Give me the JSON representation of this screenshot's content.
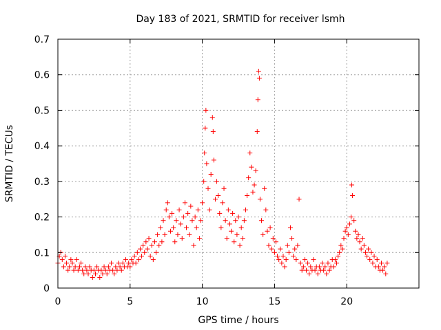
{
  "chart_data": {
    "type": "scatter",
    "title": "Day 183 of 2021, SRMTID for receiver lsmh",
    "xlabel": "GPS time / hours",
    "ylabel": "SRMTID / TECUs",
    "xlim": [
      0,
      25
    ],
    "ylim": [
      0,
      0.7
    ],
    "xticks": [
      0,
      5,
      10,
      15,
      20
    ],
    "yticks": [
      0,
      0.1,
      0.2,
      0.3,
      0.4,
      0.5,
      0.6,
      0.7
    ],
    "xtick_labels": [
      "0",
      "5",
      "10",
      "15",
      "20"
    ],
    "ytick_labels": [
      "0",
      "0.1",
      "0.2",
      "0.3",
      "0.4",
      "0.5",
      "0.6",
      "0.7"
    ],
    "grid": true,
    "marker": "+",
    "color": "#ff0000",
    "series": [
      {
        "name": "lsmh",
        "points": [
          [
            0.0,
            0.07
          ],
          [
            0.1,
            0.09
          ],
          [
            0.2,
            0.1
          ],
          [
            0.3,
            0.08
          ],
          [
            0.4,
            0.06
          ],
          [
            0.5,
            0.09
          ],
          [
            0.6,
            0.07
          ],
          [
            0.7,
            0.05
          ],
          [
            0.8,
            0.06
          ],
          [
            0.9,
            0.08
          ],
          [
            1.0,
            0.07
          ],
          [
            1.1,
            0.05
          ],
          [
            1.2,
            0.06
          ],
          [
            1.3,
            0.08
          ],
          [
            1.4,
            0.05
          ],
          [
            1.5,
            0.06
          ],
          [
            1.6,
            0.07
          ],
          [
            1.7,
            0.05
          ],
          [
            1.8,
            0.04
          ],
          [
            1.9,
            0.06
          ],
          [
            2.0,
            0.05
          ],
          [
            2.1,
            0.04
          ],
          [
            2.2,
            0.06
          ],
          [
            2.3,
            0.05
          ],
          [
            2.4,
            0.03
          ],
          [
            2.5,
            0.05
          ],
          [
            2.6,
            0.04
          ],
          [
            2.7,
            0.06
          ],
          [
            2.8,
            0.05
          ],
          [
            2.9,
            0.03
          ],
          [
            3.0,
            0.05
          ],
          [
            3.1,
            0.04
          ],
          [
            3.2,
            0.06
          ],
          [
            3.3,
            0.05
          ],
          [
            3.4,
            0.04
          ],
          [
            3.5,
            0.06
          ],
          [
            3.6,
            0.05
          ],
          [
            3.7,
            0.07
          ],
          [
            3.8,
            0.05
          ],
          [
            3.9,
            0.04
          ],
          [
            4.0,
            0.06
          ],
          [
            4.1,
            0.05
          ],
          [
            4.2,
            0.07
          ],
          [
            4.3,
            0.06
          ],
          [
            4.4,
            0.05
          ],
          [
            4.5,
            0.07
          ],
          [
            4.6,
            0.06
          ],
          [
            4.7,
            0.08
          ],
          [
            4.8,
            0.06
          ],
          [
            4.9,
            0.07
          ],
          [
            5.0,
            0.06
          ],
          [
            5.1,
            0.08
          ],
          [
            5.2,
            0.07
          ],
          [
            5.3,
            0.09
          ],
          [
            5.4,
            0.07
          ],
          [
            5.5,
            0.1
          ],
          [
            5.6,
            0.08
          ],
          [
            5.7,
            0.11
          ],
          [
            5.8,
            0.09
          ],
          [
            5.9,
            0.12
          ],
          [
            6.0,
            0.1
          ],
          [
            6.1,
            0.13
          ],
          [
            6.2,
            0.11
          ],
          [
            6.3,
            0.14
          ],
          [
            6.4,
            0.09
          ],
          [
            6.5,
            0.12
          ],
          [
            6.6,
            0.08
          ],
          [
            6.7,
            0.13
          ],
          [
            6.8,
            0.1
          ],
          [
            6.9,
            0.15
          ],
          [
            7.0,
            0.12
          ],
          [
            7.1,
            0.17
          ],
          [
            7.2,
            0.13
          ],
          [
            7.3,
            0.19
          ],
          [
            7.4,
            0.15
          ],
          [
            7.5,
            0.22
          ],
          [
            7.6,
            0.24
          ],
          [
            7.7,
            0.2
          ],
          [
            7.8,
            0.16
          ],
          [
            7.9,
            0.21
          ],
          [
            8.0,
            0.17
          ],
          [
            8.1,
            0.13
          ],
          [
            8.2,
            0.19
          ],
          [
            8.3,
            0.15
          ],
          [
            8.4,
            0.22
          ],
          [
            8.5,
            0.18
          ],
          [
            8.6,
            0.14
          ],
          [
            8.7,
            0.2
          ],
          [
            8.8,
            0.24
          ],
          [
            8.9,
            0.17
          ],
          [
            9.0,
            0.21
          ],
          [
            9.1,
            0.15
          ],
          [
            9.2,
            0.23
          ],
          [
            9.3,
            0.19
          ],
          [
            9.4,
            0.12
          ],
          [
            9.5,
            0.2
          ],
          [
            9.6,
            0.17
          ],
          [
            9.7,
            0.22
          ],
          [
            9.8,
            0.14
          ],
          [
            9.9,
            0.19
          ],
          [
            10.0,
            0.24
          ],
          [
            10.1,
            0.3
          ],
          [
            10.15,
            0.38
          ],
          [
            10.2,
            0.45
          ],
          [
            10.25,
            0.5
          ],
          [
            10.3,
            0.35
          ],
          [
            10.4,
            0.28
          ],
          [
            10.5,
            0.22
          ],
          [
            10.6,
            0.32
          ],
          [
            10.7,
            0.48
          ],
          [
            10.75,
            0.44
          ],
          [
            10.8,
            0.36
          ],
          [
            10.9,
            0.25
          ],
          [
            11.0,
            0.3
          ],
          [
            11.1,
            0.26
          ],
          [
            11.2,
            0.21
          ],
          [
            11.3,
            0.17
          ],
          [
            11.4,
            0.24
          ],
          [
            11.5,
            0.28
          ],
          [
            11.6,
            0.19
          ],
          [
            11.7,
            0.14
          ],
          [
            11.8,
            0.22
          ],
          [
            11.9,
            0.18
          ],
          [
            12.0,
            0.16
          ],
          [
            12.1,
            0.21
          ],
          [
            12.2,
            0.13
          ],
          [
            12.3,
            0.19
          ],
          [
            12.4,
            0.15
          ],
          [
            12.5,
            0.2
          ],
          [
            12.6,
            0.12
          ],
          [
            12.7,
            0.17
          ],
          [
            12.8,
            0.14
          ],
          [
            12.9,
            0.19
          ],
          [
            13.0,
            0.22
          ],
          [
            13.1,
            0.26
          ],
          [
            13.2,
            0.31
          ],
          [
            13.3,
            0.38
          ],
          [
            13.4,
            0.34
          ],
          [
            13.5,
            0.27
          ],
          [
            13.6,
            0.29
          ],
          [
            13.7,
            0.33
          ],
          [
            13.8,
            0.44
          ],
          [
            13.85,
            0.53
          ],
          [
            13.9,
            0.61
          ],
          [
            13.95,
            0.59
          ],
          [
            14.0,
            0.25
          ],
          [
            14.1,
            0.19
          ],
          [
            14.2,
            0.15
          ],
          [
            14.3,
            0.28
          ],
          [
            14.4,
            0.22
          ],
          [
            14.5,
            0.16
          ],
          [
            14.6,
            0.12
          ],
          [
            14.7,
            0.17
          ],
          [
            14.8,
            0.11
          ],
          [
            14.9,
            0.14
          ],
          [
            15.0,
            0.1
          ],
          [
            15.1,
            0.13
          ],
          [
            15.2,
            0.09
          ],
          [
            15.3,
            0.08
          ],
          [
            15.4,
            0.11
          ],
          [
            15.5,
            0.07
          ],
          [
            15.6,
            0.09
          ],
          [
            15.7,
            0.06
          ],
          [
            15.8,
            0.08
          ],
          [
            15.9,
            0.12
          ],
          [
            16.0,
            0.1
          ],
          [
            16.1,
            0.17
          ],
          [
            16.2,
            0.14
          ],
          [
            16.3,
            0.09
          ],
          [
            16.4,
            0.11
          ],
          [
            16.5,
            0.08
          ],
          [
            16.6,
            0.12
          ],
          [
            16.7,
            0.25
          ],
          [
            16.8,
            0.07
          ],
          [
            16.9,
            0.05
          ],
          [
            17.0,
            0.06
          ],
          [
            17.1,
            0.08
          ],
          [
            17.2,
            0.05
          ],
          [
            17.3,
            0.07
          ],
          [
            17.4,
            0.04
          ],
          [
            17.5,
            0.06
          ],
          [
            17.6,
            0.05
          ],
          [
            17.7,
            0.08
          ],
          [
            17.8,
            0.05
          ],
          [
            17.9,
            0.06
          ],
          [
            18.0,
            0.04
          ],
          [
            18.1,
            0.06
          ],
          [
            18.2,
            0.05
          ],
          [
            18.3,
            0.07
          ],
          [
            18.4,
            0.05
          ],
          [
            18.5,
            0.06
          ],
          [
            18.6,
            0.04
          ],
          [
            18.7,
            0.07
          ],
          [
            18.8,
            0.05
          ],
          [
            18.9,
            0.06
          ],
          [
            19.0,
            0.08
          ],
          [
            19.1,
            0.06
          ],
          [
            19.2,
            0.08
          ],
          [
            19.3,
            0.07
          ],
          [
            19.4,
            0.09
          ],
          [
            19.5,
            0.1
          ],
          [
            19.6,
            0.12
          ],
          [
            19.7,
            0.11
          ],
          [
            19.8,
            0.14
          ],
          [
            19.9,
            0.16
          ],
          [
            20.0,
            0.17
          ],
          [
            20.1,
            0.15
          ],
          [
            20.2,
            0.18
          ],
          [
            20.3,
            0.2
          ],
          [
            20.35,
            0.29
          ],
          [
            20.4,
            0.26
          ],
          [
            20.5,
            0.19
          ],
          [
            20.6,
            0.16
          ],
          [
            20.7,
            0.14
          ],
          [
            20.8,
            0.15
          ],
          [
            20.9,
            0.13
          ],
          [
            21.0,
            0.11
          ],
          [
            21.1,
            0.14
          ],
          [
            21.2,
            0.12
          ],
          [
            21.3,
            0.1
          ],
          [
            21.4,
            0.09
          ],
          [
            21.5,
            0.11
          ],
          [
            21.6,
            0.08
          ],
          [
            21.7,
            0.1
          ],
          [
            21.8,
            0.07
          ],
          [
            21.9,
            0.09
          ],
          [
            22.0,
            0.06
          ],
          [
            22.1,
            0.08
          ],
          [
            22.2,
            0.06
          ],
          [
            22.3,
            0.05
          ],
          [
            22.4,
            0.07
          ],
          [
            22.5,
            0.05
          ],
          [
            22.6,
            0.06
          ],
          [
            22.7,
            0.04
          ],
          [
            22.8,
            0.07
          ]
        ]
      }
    ]
  }
}
